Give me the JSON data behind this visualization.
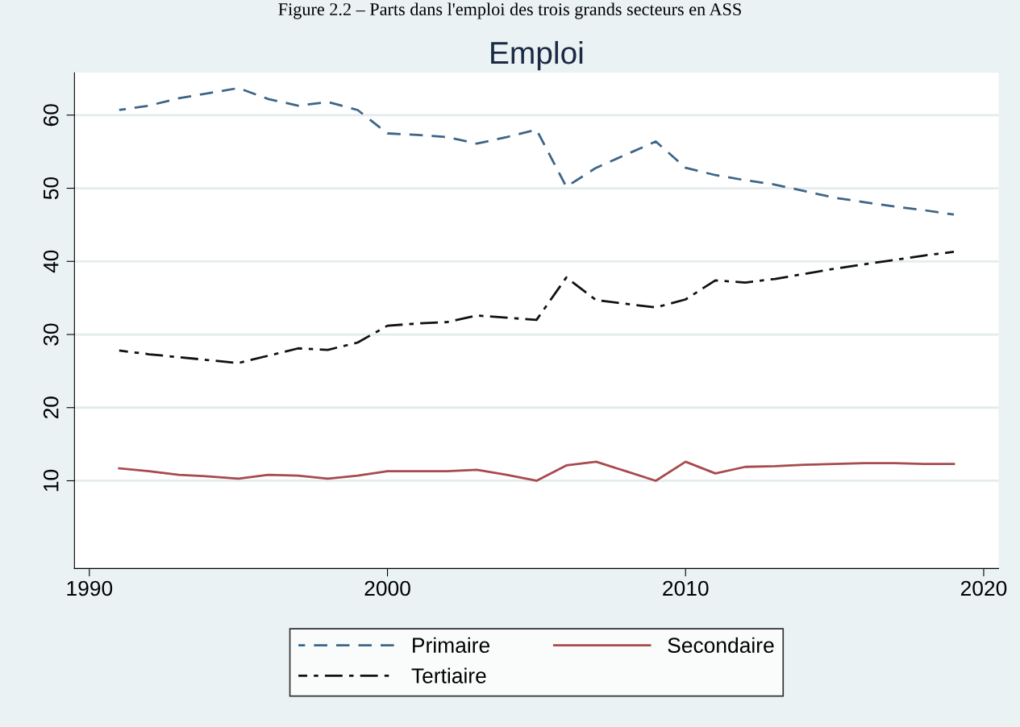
{
  "chart_data": {
    "type": "line",
    "title": "Emploi",
    "annotations": [
      "Figure 2.2 – Parts dans l'emploi des trois grands secteurs en ASS"
    ],
    "x": [
      1991,
      1992,
      1993,
      1994,
      1995,
      1996,
      1997,
      1998,
      1999,
      2000,
      2001,
      2002,
      2003,
      2004,
      2005,
      2006,
      2007,
      2008,
      2009,
      2010,
      2011,
      2012,
      2013,
      2014,
      2015,
      2016,
      2017,
      2018,
      2019
    ],
    "series": [
      {
        "name": "Primaire",
        "color": "#3d6587",
        "line_style": "dashed",
        "values": [
          60.7,
          61.3,
          62.3,
          63.0,
          63.7,
          62.2,
          61.3,
          61.8,
          60.7,
          57.5,
          57.3,
          57.0,
          56.1,
          57.0,
          58.0,
          50.2,
          52.8,
          54.6,
          56.4,
          52.8,
          51.8,
          51.1,
          50.5,
          49.6,
          48.7,
          48.1,
          47.5,
          47.0,
          46.4
        ]
      },
      {
        "name": "Secondaire",
        "color": "#a84a4e",
        "line_style": "solid",
        "values": [
          11.7,
          11.3,
          10.8,
          10.6,
          10.3,
          10.8,
          10.7,
          10.3,
          10.7,
          11.3,
          11.3,
          11.3,
          11.5,
          10.8,
          10.0,
          12.1,
          12.6,
          11.3,
          10.0,
          12.6,
          11.0,
          11.9,
          12.0,
          12.2,
          12.3,
          12.4,
          12.4,
          12.3,
          12.3
        ]
      },
      {
        "name": "Tertiaire",
        "color": "#111111",
        "line_style": "dashdot",
        "values": [
          27.8,
          27.3,
          26.9,
          26.5,
          26.1,
          27.1,
          28.1,
          27.9,
          28.9,
          31.2,
          31.5,
          31.7,
          32.6,
          32.3,
          32.0,
          37.8,
          34.7,
          34.2,
          33.7,
          34.8,
          37.4,
          37.1,
          37.6,
          38.3,
          39.0,
          39.6,
          40.2,
          40.8,
          41.3
        ]
      }
    ],
    "xlim": [
      1989.5,
      2020.5
    ],
    "xticks": [
      1990,
      2000,
      2010,
      2020
    ],
    "ylim": [
      -2,
      65.8
    ],
    "yticks": [
      10,
      20,
      30,
      40,
      50,
      60
    ],
    "grid": "y",
    "legend": "bottom",
    "marker": "none"
  }
}
